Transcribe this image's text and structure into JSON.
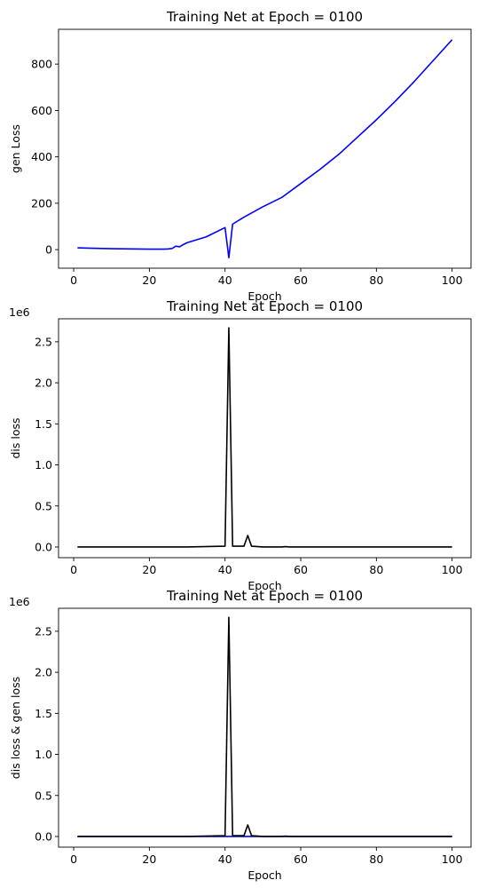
{
  "chart_data": [
    {
      "type": "line",
      "title": "Training Net at Epoch = 0100",
      "xlabel": "Epoch",
      "ylabel": "gen Loss",
      "offset_label": "",
      "xlim": [
        -4,
        105
      ],
      "ylim": [
        -80,
        950
      ],
      "xticks": [
        0,
        20,
        40,
        60,
        80,
        100
      ],
      "yticks": [
        0,
        200,
        400,
        600,
        800
      ],
      "ytick_labels": [
        "0",
        "200",
        "400",
        "600",
        "800"
      ],
      "series": [
        {
          "color": "#0000ff",
          "x": [
            1,
            5,
            10,
            15,
            20,
            24,
            25,
            26,
            27,
            28,
            29,
            30,
            35,
            40,
            41,
            42,
            45,
            50,
            55,
            60,
            65,
            70,
            75,
            80,
            85,
            90,
            95,
            100
          ],
          "y": [
            8,
            6,
            4,
            3,
            2,
            2,
            3,
            5,
            15,
            12,
            22,
            30,
            55,
            95,
            -35,
            110,
            140,
            185,
            225,
            285,
            345,
            410,
            485,
            560,
            640,
            725,
            815,
            905
          ]
        }
      ]
    },
    {
      "type": "line",
      "title": "Training Net at Epoch = 0100",
      "xlabel": "Epoch",
      "ylabel": "dis loss",
      "offset_label": "1e6",
      "xlim": [
        -4,
        105
      ],
      "ylim": [
        -0.13,
        2.78
      ],
      "xticks": [
        0,
        20,
        40,
        60,
        80,
        100
      ],
      "yticks": [
        0,
        0.5,
        1.0,
        1.5,
        2.0,
        2.5
      ],
      "ytick_labels": [
        "0.0",
        "0.5",
        "1.0",
        "1.5",
        "2.0",
        "2.5"
      ],
      "series": [
        {
          "color": "#000000",
          "x": [
            1,
            10,
            20,
            30,
            40,
            41,
            42,
            43,
            44,
            45,
            46,
            47,
            50,
            55,
            56,
            57,
            60,
            70,
            80,
            90,
            100
          ],
          "y": [
            0,
            0,
            0,
            0,
            0.01,
            2.67,
            0.01,
            0.01,
            0.01,
            0.01,
            0.14,
            0.01,
            0,
            0,
            0.005,
            0,
            0,
            0,
            0,
            0,
            0
          ]
        }
      ]
    },
    {
      "type": "line",
      "title": "Training Net at Epoch = 0100",
      "xlabel": "Epoch",
      "ylabel": "dis loss & gen loss",
      "offset_label": "1e6",
      "xlim": [
        -4,
        105
      ],
      "ylim": [
        -0.13,
        2.78
      ],
      "xticks": [
        0,
        20,
        40,
        60,
        80,
        100
      ],
      "yticks": [
        0,
        0.5,
        1.0,
        1.5,
        2.0,
        2.5
      ],
      "ytick_labels": [
        "0.0",
        "0.5",
        "1.0",
        "1.5",
        "2.0",
        "2.5"
      ],
      "series": [
        {
          "color": "#0000ff",
          "x": [
            1,
            20,
            40,
            41,
            42,
            60,
            80,
            100
          ],
          "y": [
            0.0,
            0.0,
            0.0001,
            0,
            0.0001,
            0.0003,
            0.0006,
            0.0009
          ]
        },
        {
          "color": "#000000",
          "x": [
            1,
            10,
            20,
            30,
            40,
            41,
            42,
            43,
            44,
            45,
            46,
            47,
            50,
            55,
            56,
            57,
            60,
            70,
            80,
            90,
            100
          ],
          "y": [
            0,
            0,
            0,
            0,
            0.01,
            2.67,
            0.01,
            0.01,
            0.01,
            0.01,
            0.14,
            0.01,
            0,
            0,
            0.005,
            0,
            0,
            0,
            0,
            0,
            0
          ]
        }
      ]
    }
  ]
}
